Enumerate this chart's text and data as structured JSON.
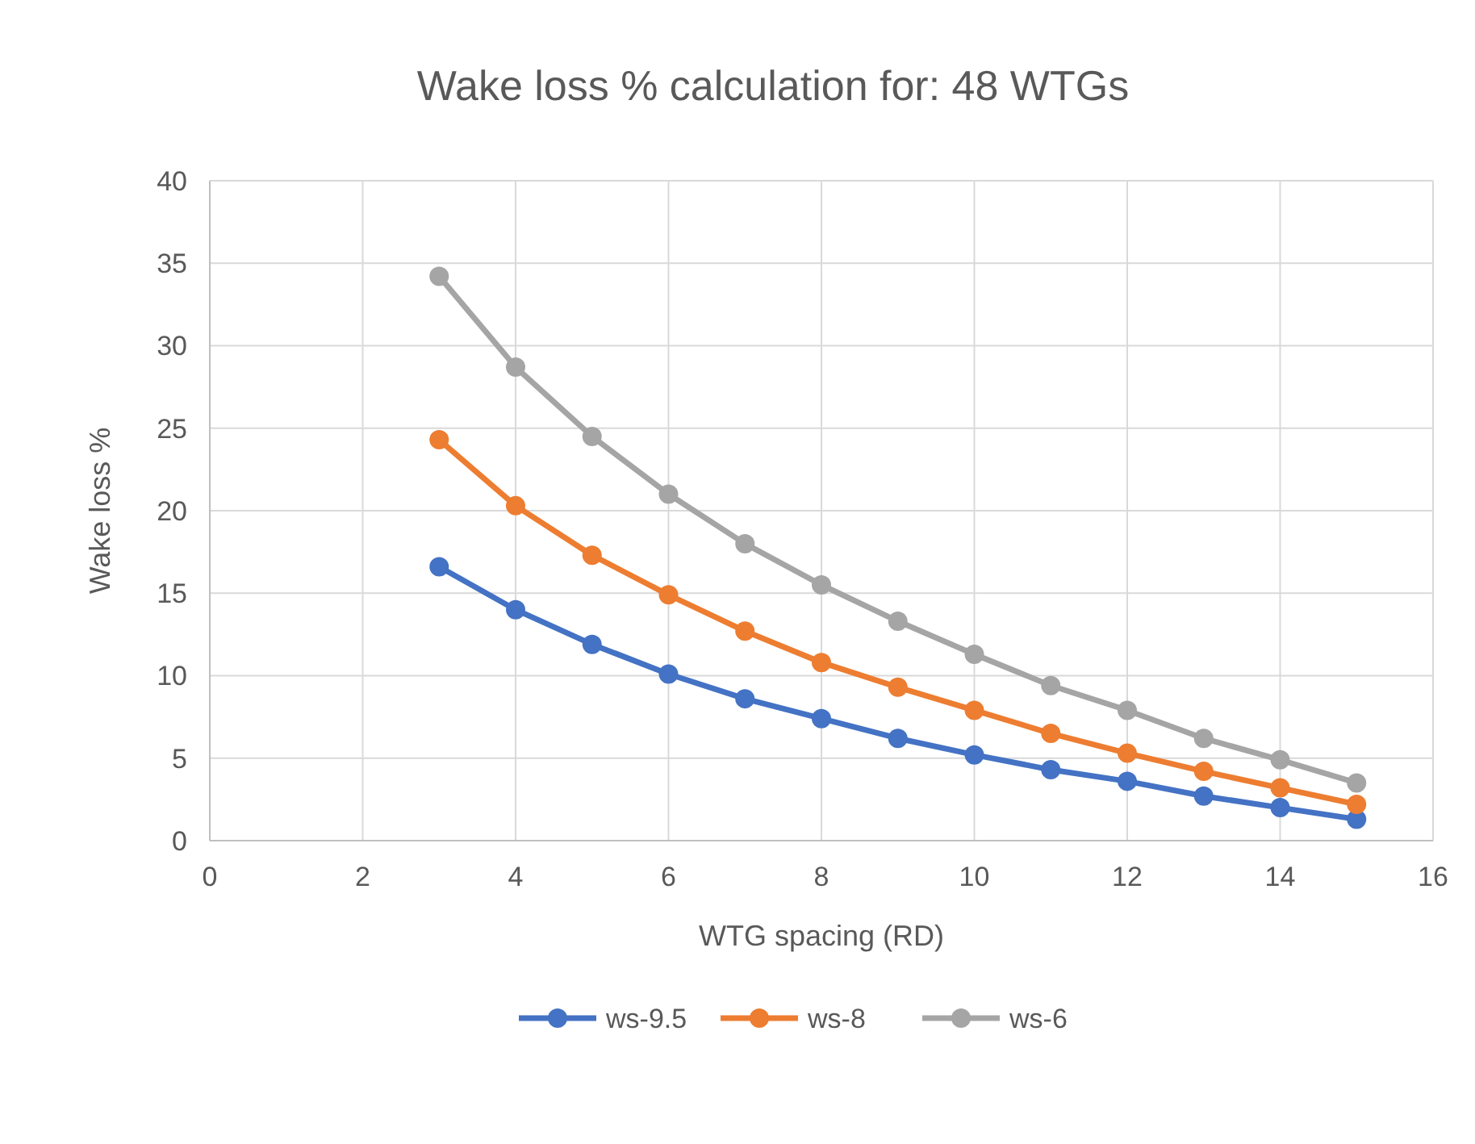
{
  "chart_data": {
    "type": "line",
    "title": "Wake loss % calculation for: 48 WTGs",
    "xlabel": "WTG spacing (RD)",
    "ylabel": "Wake loss %",
    "x": [
      3,
      4,
      5,
      6,
      7,
      8,
      9,
      10,
      11,
      12,
      13,
      14,
      15
    ],
    "series": [
      {
        "name": "ws-9.5",
        "color": "#4472c4",
        "values": [
          16.6,
          14.0,
          11.9,
          10.1,
          8.6,
          7.4,
          6.2,
          5.2,
          4.3,
          3.6,
          2.7,
          2.0,
          1.3
        ]
      },
      {
        "name": "ws-8",
        "color": "#ed7d31",
        "values": [
          24.3,
          20.3,
          17.3,
          14.9,
          12.7,
          10.8,
          9.3,
          7.9,
          6.5,
          5.3,
          4.2,
          3.2,
          2.2
        ]
      },
      {
        "name": "ws-6",
        "color": "#a5a5a5",
        "values": [
          34.2,
          28.7,
          24.5,
          21.0,
          18.0,
          15.5,
          13.3,
          11.3,
          9.4,
          7.9,
          6.2,
          4.9,
          3.5
        ]
      }
    ],
    "xlim": [
      0,
      16
    ],
    "xticks": [
      0,
      2,
      4,
      6,
      8,
      10,
      12,
      14,
      16
    ],
    "ylim": [
      0,
      40
    ],
    "yticks": [
      0,
      5,
      10,
      15,
      20,
      25,
      30,
      35,
      40
    ],
    "grid": true,
    "legend": "bottom",
    "marker": "circle",
    "line_style": "solid"
  }
}
